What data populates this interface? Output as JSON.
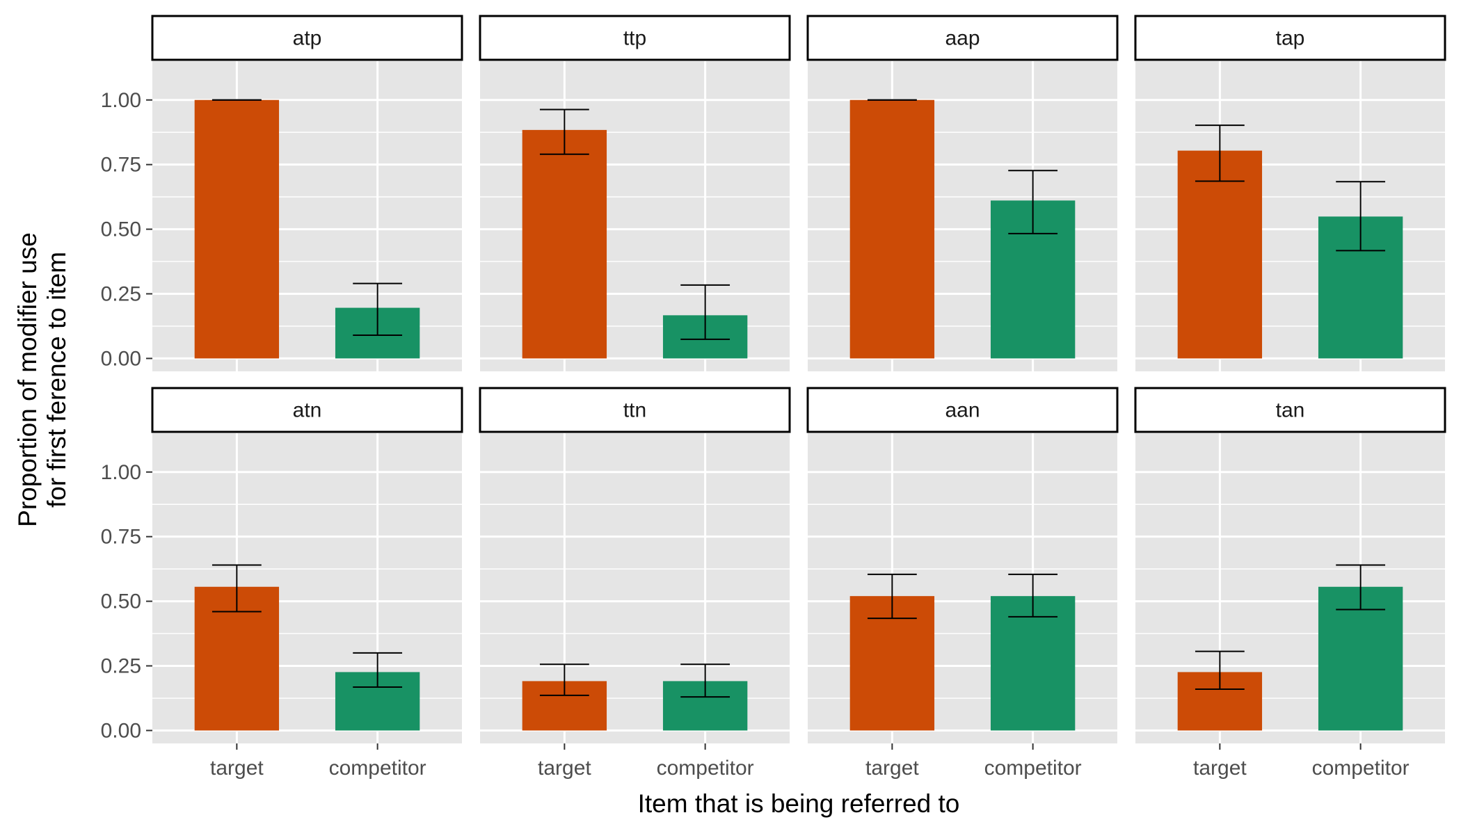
{
  "chart_data": {
    "type": "bar",
    "layout": "facet-grid",
    "facet_rows": 2,
    "facet_cols": 4,
    "xlabel": "Item that is being referred to",
    "ylabel_lines": [
      "Proportion of modifier use",
      "for first ference to item"
    ],
    "categories": [
      "target",
      "competitor"
    ],
    "ylim": [
      -0.05,
      1.15
    ],
    "yticks": [
      0,
      0.25,
      0.5,
      0.75,
      1.0
    ],
    "ytick_labels": [
      "0.00",
      "0.25",
      "0.50",
      "0.75",
      "1.00"
    ],
    "grid": true,
    "colors": {
      "target": "#CC4B06",
      "competitor": "#189264",
      "panel_background": "#E5E5E5",
      "grid": "#FFFFFF",
      "error_bar": "#000000"
    },
    "panels": [
      {
        "label": "atp",
        "values": [
          1.0,
          0.196
        ],
        "error_low": [
          1.0,
          0.09
        ],
        "error_high": [
          1.0,
          0.29
        ]
      },
      {
        "label": "ttp",
        "values": [
          0.884,
          0.167
        ],
        "error_low": [
          0.79,
          0.074
        ],
        "error_high": [
          0.963,
          0.284
        ]
      },
      {
        "label": "aap",
        "values": [
          1.0,
          0.611
        ],
        "error_low": [
          1.0,
          0.483
        ],
        "error_high": [
          1.0,
          0.727
        ]
      },
      {
        "label": "tap",
        "values": [
          0.804,
          0.549
        ],
        "error_low": [
          0.686,
          0.417
        ],
        "error_high": [
          0.902,
          0.684
        ]
      },
      {
        "label": "atn",
        "values": [
          0.556,
          0.226
        ],
        "error_low": [
          0.46,
          0.168
        ],
        "error_high": [
          0.64,
          0.3
        ]
      },
      {
        "label": "ttn",
        "values": [
          0.191,
          0.191
        ],
        "error_low": [
          0.136,
          0.13
        ],
        "error_high": [
          0.256,
          0.256
        ]
      },
      {
        "label": "aan",
        "values": [
          0.52,
          0.52
        ],
        "error_low": [
          0.434,
          0.44
        ],
        "error_high": [
          0.604,
          0.604
        ]
      },
      {
        "label": "tan",
        "values": [
          0.226,
          0.556
        ],
        "error_low": [
          0.16,
          0.468
        ],
        "error_high": [
          0.306,
          0.64
        ]
      }
    ]
  }
}
